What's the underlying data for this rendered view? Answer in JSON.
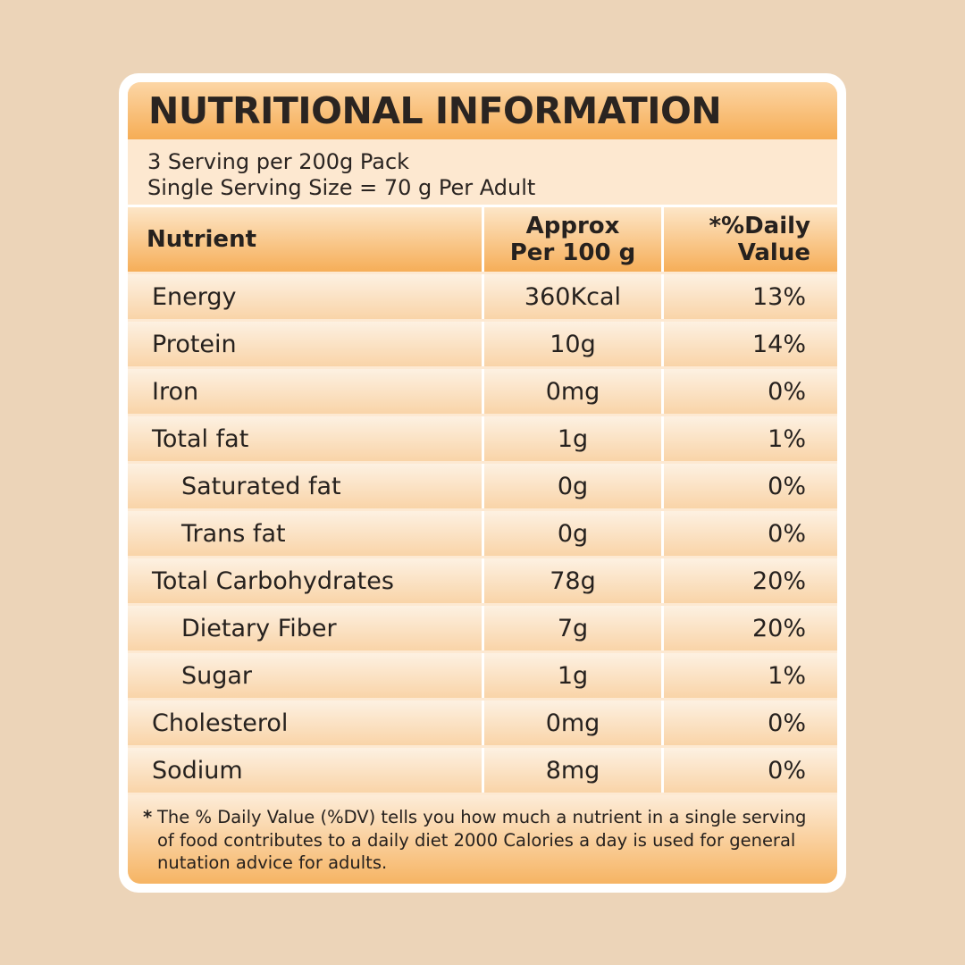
{
  "title": "NUTRITIONAL INFORMATION",
  "serving": {
    "line1": "3 Serving per 200g Pack",
    "line2": "Single Serving Size = 70 g Per Adult"
  },
  "table": {
    "headers": {
      "nutrient": "Nutrient",
      "approx_line1": "Approx",
      "approx_line2": "Per 100 g",
      "dv_line1": "*%Daily",
      "dv_line2": "Value"
    },
    "rows": [
      {
        "nutrient": "Energy",
        "amount": "360Kcal",
        "dv": "13%",
        "indent": false
      },
      {
        "nutrient": "Protein",
        "amount": "10g",
        "dv": "14%",
        "indent": false
      },
      {
        "nutrient": "Iron",
        "amount": "0mg",
        "dv": "0%",
        "indent": false
      },
      {
        "nutrient": "Total fat",
        "amount": "1g",
        "dv": "1%",
        "indent": false
      },
      {
        "nutrient": "Saturated fat",
        "amount": "0g",
        "dv": "0%",
        "indent": true
      },
      {
        "nutrient": "Trans fat",
        "amount": "0g",
        "dv": "0%",
        "indent": true
      },
      {
        "nutrient": "Total Carbohydrates",
        "amount": "78g",
        "dv": "20%",
        "indent": false
      },
      {
        "nutrient": "Dietary Fiber",
        "amount": "7g",
        "dv": "20%",
        "indent": true
      },
      {
        "nutrient": "Sugar",
        "amount": "1g",
        "dv": "1%",
        "indent": true
      },
      {
        "nutrient": "Cholesterol",
        "amount": "0mg",
        "dv": "0%",
        "indent": false
      },
      {
        "nutrient": "Sodium",
        "amount": "8mg",
        "dv": "0%",
        "indent": false
      }
    ]
  },
  "footnote": {
    "marker": "*",
    "text": "The % Daily Value (%DV) tells you how much a nutrient in a single serving of food contributes to a daily diet 2000 Calories a day is used for general nutation advice for adults."
  },
  "colors": {
    "background": "#ecd4b8",
    "accent_orange": "#f6ad55",
    "panel": "#fde9d2"
  }
}
